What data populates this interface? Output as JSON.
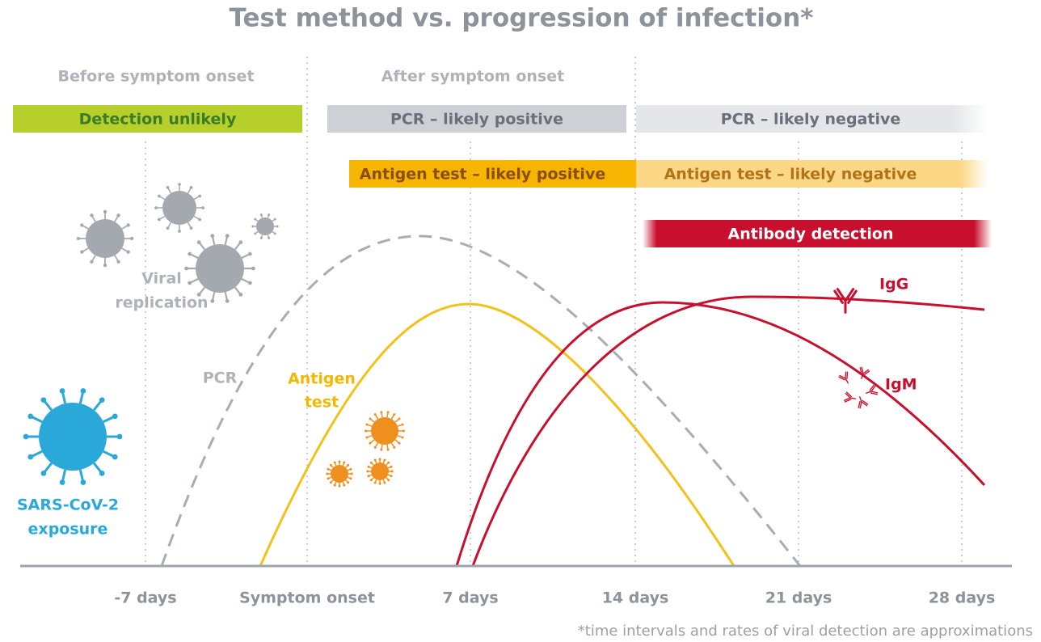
{
  "title": "Test method vs. progression of infection*",
  "phases": [
    "Before symptom onset",
    "After symptom onset"
  ],
  "bars": [
    "Detection unlikely",
    "PCR – likely positive",
    "PCR – likely negative",
    "Antigen test – likely positive",
    "Antigen test – likely negative",
    "Antibody detection"
  ],
  "labels": {
    "viral_replication": [
      "Viral",
      "replication"
    ],
    "pcr": "PCR",
    "antigen": [
      "Antigen",
      "test"
    ],
    "igg": "IgG",
    "igm": "IgM",
    "exposure": [
      "SARS-CoV-2",
      "exposure"
    ]
  },
  "x_axis": [
    "-7 days",
    "Symptom onset",
    "7 days",
    "14 days",
    "21 days",
    "28 days"
  ],
  "footnote": "*time intervals and rates of viral detection are approximations"
}
